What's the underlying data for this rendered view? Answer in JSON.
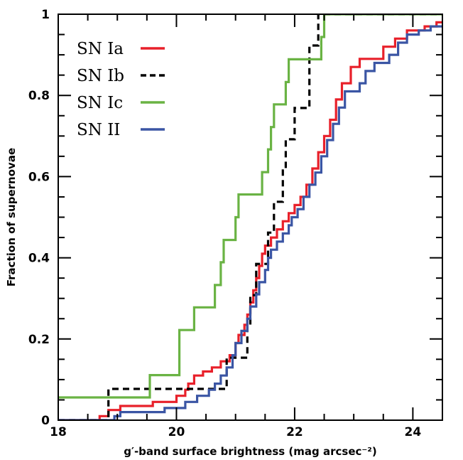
{
  "chart_data": {
    "type": "line",
    "xlabel": "g′-band surface brightness (mag arcsec⁻²)",
    "ylabel": "Fraction of supernovae",
    "xlim": [
      18,
      24.5
    ],
    "ylim": [
      0,
      1
    ],
    "x_ticks": [
      {
        "value": 18,
        "label": "18"
      },
      {
        "value": 20,
        "label": "20"
      },
      {
        "value": 22,
        "label": "22"
      },
      {
        "value": 24,
        "label": "24"
      }
    ],
    "y_ticks": [
      {
        "value": 0,
        "label": "0"
      },
      {
        "value": 0.2,
        "label": "0.2"
      },
      {
        "value": 0.4,
        "label": "0.4"
      },
      {
        "value": 0.6,
        "label": "0.6"
      },
      {
        "value": 0.8,
        "label": "0.8"
      },
      {
        "value": 1,
        "label": "1"
      }
    ],
    "grid": false,
    "legend_position": "top-left",
    "series": [
      {
        "name": "SN Ia",
        "color": "#e8202a",
        "dash": "solid",
        "points": [
          [
            18.0,
            0.0
          ],
          [
            18.7,
            0.0
          ],
          [
            18.7,
            0.01
          ],
          [
            18.85,
            0.01
          ],
          [
            18.85,
            0.025
          ],
          [
            19.05,
            0.025
          ],
          [
            19.05,
            0.035
          ],
          [
            19.6,
            0.035
          ],
          [
            19.6,
            0.045
          ],
          [
            20.0,
            0.045
          ],
          [
            20.0,
            0.06
          ],
          [
            20.15,
            0.06
          ],
          [
            20.15,
            0.075
          ],
          [
            20.2,
            0.075
          ],
          [
            20.2,
            0.09
          ],
          [
            20.3,
            0.09
          ],
          [
            20.3,
            0.11
          ],
          [
            20.45,
            0.11
          ],
          [
            20.45,
            0.12
          ],
          [
            20.6,
            0.12
          ],
          [
            20.6,
            0.13
          ],
          [
            20.75,
            0.13
          ],
          [
            20.75,
            0.145
          ],
          [
            20.9,
            0.145
          ],
          [
            20.9,
            0.16
          ],
          [
            21.0,
            0.16
          ],
          [
            21.0,
            0.19
          ],
          [
            21.05,
            0.19
          ],
          [
            21.05,
            0.21
          ],
          [
            21.15,
            0.21
          ],
          [
            21.15,
            0.235
          ],
          [
            21.2,
            0.235
          ],
          [
            21.2,
            0.26
          ],
          [
            21.25,
            0.26
          ],
          [
            21.25,
            0.29
          ],
          [
            21.3,
            0.29
          ],
          [
            21.3,
            0.32
          ],
          [
            21.35,
            0.32
          ],
          [
            21.35,
            0.35
          ],
          [
            21.4,
            0.35
          ],
          [
            21.4,
            0.38
          ],
          [
            21.45,
            0.38
          ],
          [
            21.45,
            0.41
          ],
          [
            21.5,
            0.41
          ],
          [
            21.5,
            0.43
          ],
          [
            21.6,
            0.43
          ],
          [
            21.6,
            0.45
          ],
          [
            21.7,
            0.45
          ],
          [
            21.7,
            0.47
          ],
          [
            21.8,
            0.47
          ],
          [
            21.8,
            0.49
          ],
          [
            21.9,
            0.49
          ],
          [
            21.9,
            0.51
          ],
          [
            22.0,
            0.51
          ],
          [
            22.0,
            0.53
          ],
          [
            22.1,
            0.53
          ],
          [
            22.1,
            0.55
          ],
          [
            22.2,
            0.55
          ],
          [
            22.2,
            0.58
          ],
          [
            22.3,
            0.58
          ],
          [
            22.3,
            0.62
          ],
          [
            22.4,
            0.62
          ],
          [
            22.4,
            0.66
          ],
          [
            22.5,
            0.66
          ],
          [
            22.5,
            0.7
          ],
          [
            22.6,
            0.7
          ],
          [
            22.6,
            0.74
          ],
          [
            22.7,
            0.74
          ],
          [
            22.7,
            0.79
          ],
          [
            22.8,
            0.79
          ],
          [
            22.8,
            0.83
          ],
          [
            22.95,
            0.83
          ],
          [
            22.95,
            0.87
          ],
          [
            23.1,
            0.87
          ],
          [
            23.1,
            0.89
          ],
          [
            23.5,
            0.89
          ],
          [
            23.5,
            0.92
          ],
          [
            23.7,
            0.92
          ],
          [
            23.7,
            0.94
          ],
          [
            23.9,
            0.94
          ],
          [
            23.9,
            0.96
          ],
          [
            24.2,
            0.96
          ],
          [
            24.2,
            0.97
          ],
          [
            24.4,
            0.97
          ],
          [
            24.4,
            0.98
          ],
          [
            24.5,
            0.98
          ]
        ]
      },
      {
        "name": "SN Ib",
        "color": "#000000",
        "dash": "dashed",
        "points": [
          [
            18.0,
            0.0
          ],
          [
            18.85,
            0.0
          ],
          [
            18.85,
            0.077
          ],
          [
            20.85,
            0.077
          ],
          [
            20.85,
            0.154
          ],
          [
            21.2,
            0.154
          ],
          [
            21.2,
            0.231
          ],
          [
            21.25,
            0.231
          ],
          [
            21.25,
            0.308
          ],
          [
            21.35,
            0.308
          ],
          [
            21.35,
            0.385
          ],
          [
            21.55,
            0.385
          ],
          [
            21.55,
            0.462
          ],
          [
            21.65,
            0.462
          ],
          [
            21.65,
            0.538
          ],
          [
            21.8,
            0.538
          ],
          [
            21.8,
            0.615
          ],
          [
            21.85,
            0.615
          ],
          [
            21.85,
            0.692
          ],
          [
            22.0,
            0.692
          ],
          [
            22.0,
            0.769
          ],
          [
            22.25,
            0.769
          ],
          [
            22.25,
            0.923
          ],
          [
            22.4,
            0.923
          ],
          [
            22.4,
            1.0
          ],
          [
            24.5,
            1.0
          ]
        ]
      },
      {
        "name": "SN Ic",
        "color": "#6ab344",
        "dash": "solid",
        "points": [
          [
            18.0,
            0.056
          ],
          [
            19.55,
            0.056
          ],
          [
            19.55,
            0.111
          ],
          [
            20.05,
            0.111
          ],
          [
            20.05,
            0.222
          ],
          [
            20.3,
            0.222
          ],
          [
            20.3,
            0.278
          ],
          [
            20.65,
            0.278
          ],
          [
            20.65,
            0.333
          ],
          [
            20.75,
            0.333
          ],
          [
            20.75,
            0.389
          ],
          [
            20.8,
            0.389
          ],
          [
            20.8,
            0.444
          ],
          [
            21.0,
            0.444
          ],
          [
            21.0,
            0.5
          ],
          [
            21.05,
            0.5
          ],
          [
            21.05,
            0.556
          ],
          [
            21.45,
            0.556
          ],
          [
            21.45,
            0.611
          ],
          [
            21.55,
            0.611
          ],
          [
            21.55,
            0.667
          ],
          [
            21.6,
            0.667
          ],
          [
            21.6,
            0.722
          ],
          [
            21.65,
            0.722
          ],
          [
            21.65,
            0.778
          ],
          [
            21.85,
            0.778
          ],
          [
            21.85,
            0.833
          ],
          [
            21.9,
            0.833
          ],
          [
            21.9,
            0.889
          ],
          [
            22.45,
            0.889
          ],
          [
            22.45,
            0.944
          ],
          [
            22.5,
            0.944
          ],
          [
            22.5,
            1.0
          ],
          [
            24.5,
            1.0
          ]
        ]
      },
      {
        "name": "SN II",
        "color": "#3a55a4",
        "dash": "solid",
        "points": [
          [
            18.0,
            0.0
          ],
          [
            18.95,
            0.0
          ],
          [
            18.95,
            0.01
          ],
          [
            19.05,
            0.01
          ],
          [
            19.05,
            0.02
          ],
          [
            19.8,
            0.02
          ],
          [
            19.8,
            0.03
          ],
          [
            20.15,
            0.03
          ],
          [
            20.15,
            0.045
          ],
          [
            20.35,
            0.045
          ],
          [
            20.35,
            0.06
          ],
          [
            20.55,
            0.06
          ],
          [
            20.55,
            0.075
          ],
          [
            20.65,
            0.075
          ],
          [
            20.65,
            0.09
          ],
          [
            20.75,
            0.09
          ],
          [
            20.75,
            0.11
          ],
          [
            20.85,
            0.11
          ],
          [
            20.85,
            0.13
          ],
          [
            20.95,
            0.13
          ],
          [
            20.95,
            0.16
          ],
          [
            21.0,
            0.16
          ],
          [
            21.0,
            0.19
          ],
          [
            21.1,
            0.19
          ],
          [
            21.1,
            0.22
          ],
          [
            21.2,
            0.22
          ],
          [
            21.2,
            0.25
          ],
          [
            21.25,
            0.25
          ],
          [
            21.25,
            0.28
          ],
          [
            21.35,
            0.28
          ],
          [
            21.35,
            0.31
          ],
          [
            21.4,
            0.31
          ],
          [
            21.4,
            0.34
          ],
          [
            21.5,
            0.34
          ],
          [
            21.5,
            0.37
          ],
          [
            21.55,
            0.37
          ],
          [
            21.55,
            0.4
          ],
          [
            21.6,
            0.4
          ],
          [
            21.6,
            0.42
          ],
          [
            21.7,
            0.42
          ],
          [
            21.7,
            0.44
          ],
          [
            21.8,
            0.44
          ],
          [
            21.8,
            0.46
          ],
          [
            21.9,
            0.46
          ],
          [
            21.9,
            0.48
          ],
          [
            21.95,
            0.48
          ],
          [
            21.95,
            0.5
          ],
          [
            22.05,
            0.5
          ],
          [
            22.05,
            0.52
          ],
          [
            22.15,
            0.52
          ],
          [
            22.15,
            0.55
          ],
          [
            22.25,
            0.55
          ],
          [
            22.25,
            0.58
          ],
          [
            22.35,
            0.58
          ],
          [
            22.35,
            0.61
          ],
          [
            22.45,
            0.61
          ],
          [
            22.45,
            0.65
          ],
          [
            22.55,
            0.65
          ],
          [
            22.55,
            0.69
          ],
          [
            22.65,
            0.69
          ],
          [
            22.65,
            0.73
          ],
          [
            22.75,
            0.73
          ],
          [
            22.75,
            0.77
          ],
          [
            22.85,
            0.77
          ],
          [
            22.85,
            0.81
          ],
          [
            23.1,
            0.81
          ],
          [
            23.1,
            0.83
          ],
          [
            23.2,
            0.83
          ],
          [
            23.2,
            0.86
          ],
          [
            23.35,
            0.86
          ],
          [
            23.35,
            0.88
          ],
          [
            23.6,
            0.88
          ],
          [
            23.6,
            0.9
          ],
          [
            23.75,
            0.9
          ],
          [
            23.75,
            0.93
          ],
          [
            23.9,
            0.93
          ],
          [
            23.9,
            0.95
          ],
          [
            24.1,
            0.95
          ],
          [
            24.1,
            0.96
          ],
          [
            24.3,
            0.96
          ],
          [
            24.3,
            0.97
          ],
          [
            24.5,
            0.97
          ]
        ]
      }
    ]
  }
}
